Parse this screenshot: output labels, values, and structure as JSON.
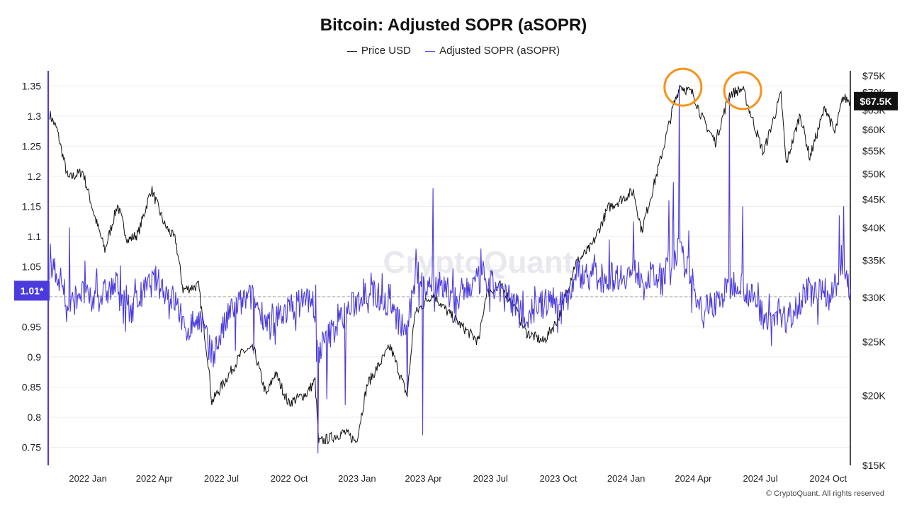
{
  "chart_data": {
    "type": "line",
    "title": "Bitcoin: Adjusted SOPR (aSOPR)",
    "watermark": "CryptoQuant",
    "footer": "© CryptoQuant. All rights reserved",
    "x_tick_labels": [
      "2022 Jan",
      "2022 Apr",
      "2022 Jul",
      "2022 Oct",
      "2023 Jan",
      "2023 Apr",
      "2023 Jul",
      "2023 Oct",
      "2024 Jan",
      "2024 Apr",
      "2024 Jul",
      "2024 Oct"
    ],
    "x_range": [
      "2021-11-10",
      "2024-10-31"
    ],
    "left_axis": {
      "ticks": [
        0.75,
        0.8,
        0.85,
        0.9,
        0.95,
        1.0,
        1.05,
        1.1,
        1.15,
        1.2,
        1.25,
        1.3,
        1.35
      ],
      "tick_labels": [
        "0.75",
        "0.8",
        "0.85",
        "0.9",
        "0.95",
        "",
        "1.05",
        "1.1",
        "1.15",
        "1.2",
        "1.25",
        "1.3",
        "1.35"
      ],
      "ylim": [
        0.72,
        1.375
      ],
      "current_value_label": "1.01*",
      "reference_line": 1.0
    },
    "right_axis": {
      "scale": "log",
      "ticks": [
        15000,
        20000,
        25000,
        30000,
        35000,
        40000,
        45000,
        50000,
        55000,
        60000,
        65000,
        70000,
        75000
      ],
      "tick_labels": [
        "$15K",
        "$20K",
        "$25K",
        "$30K",
        "$35K",
        "$40K",
        "$45K",
        "$50K",
        "$55K",
        "$60K",
        "$65K",
        "$70K",
        "$75K"
      ],
      "ylim": [
        15000,
        76500
      ],
      "current_value_label": "$67.5K"
    },
    "colors": {
      "price": "#111111",
      "asopr": "#4b3bdc",
      "annotation": "#f7931a"
    },
    "series": [
      {
        "name": "Price USD",
        "axis": "right",
        "points": [
          [
            "2021-11-10",
            64000
          ],
          [
            "2021-11-20",
            60000
          ],
          [
            "2021-12-05",
            49000
          ],
          [
            "2021-12-25",
            50500
          ],
          [
            "2022-01-10",
            42000
          ],
          [
            "2022-01-24",
            36500
          ],
          [
            "2022-02-10",
            44000
          ],
          [
            "2022-02-24",
            38000
          ],
          [
            "2022-03-10",
            39000
          ],
          [
            "2022-03-28",
            47000
          ],
          [
            "2022-04-15",
            40500
          ],
          [
            "2022-04-30",
            38000
          ],
          [
            "2022-05-10",
            31000
          ],
          [
            "2022-05-31",
            31500
          ],
          [
            "2022-06-13",
            23000
          ],
          [
            "2022-06-18",
            19500
          ],
          [
            "2022-07-08",
            21500
          ],
          [
            "2022-07-30",
            24000
          ],
          [
            "2022-08-14",
            24200
          ],
          [
            "2022-08-31",
            20000
          ],
          [
            "2022-09-12",
            22000
          ],
          [
            "2022-09-30",
            19400
          ],
          [
            "2022-10-25",
            20200
          ],
          [
            "2022-11-05",
            21300
          ],
          [
            "2022-11-10",
            16500
          ],
          [
            "2022-12-15",
            17200
          ],
          [
            "2022-12-31",
            16550
          ],
          [
            "2023-01-15",
            21000
          ],
          [
            "2023-02-15",
            24500
          ],
          [
            "2023-03-10",
            20000
          ],
          [
            "2023-03-20",
            28000
          ],
          [
            "2023-04-14",
            30500
          ],
          [
            "2023-05-01",
            28500
          ],
          [
            "2023-05-25",
            26500
          ],
          [
            "2023-06-15",
            25000
          ],
          [
            "2023-06-25",
            30500
          ],
          [
            "2023-07-14",
            31500
          ],
          [
            "2023-08-01",
            29200
          ],
          [
            "2023-08-18",
            26000
          ],
          [
            "2023-09-11",
            25000
          ],
          [
            "2023-10-01",
            27500
          ],
          [
            "2023-10-24",
            34500
          ],
          [
            "2023-11-15",
            37000
          ],
          [
            "2023-12-08",
            43500
          ],
          [
            "2024-01-11",
            46500
          ],
          [
            "2024-01-22",
            39500
          ],
          [
            "2024-02-15",
            52000
          ],
          [
            "2024-03-05",
            66000
          ],
          [
            "2024-03-14",
            72000
          ],
          [
            "2024-04-01",
            69500
          ],
          [
            "2024-04-13",
            63000
          ],
          [
            "2024-05-01",
            57000
          ],
          [
            "2024-05-20",
            69500
          ],
          [
            "2024-06-07",
            71000
          ],
          [
            "2024-06-24",
            60500
          ],
          [
            "2024-07-05",
            54500
          ],
          [
            "2024-07-29",
            69500
          ],
          [
            "2024-08-05",
            52000
          ],
          [
            "2024-08-24",
            64000
          ],
          [
            "2024-09-06",
            53500
          ],
          [
            "2024-09-27",
            66000
          ],
          [
            "2024-10-10",
            59000
          ],
          [
            "2024-10-21",
            68500
          ],
          [
            "2024-10-31",
            67500
          ]
        ]
      },
      {
        "name": "Adjusted SOPR (aSOPR)",
        "axis": "left",
        "points": [
          [
            "2021-11-10",
            1.05
          ],
          [
            "2021-11-25",
            1.03
          ],
          [
            "2021-12-04",
            0.97
          ],
          [
            "2021-12-20",
            1.01
          ],
          [
            "2022-01-05",
            0.99
          ],
          [
            "2022-02-10",
            1.02
          ],
          [
            "2022-03-01",
            0.98
          ],
          [
            "2022-04-01",
            1.03
          ],
          [
            "2022-05-01",
            0.99
          ],
          [
            "2022-05-12",
            0.94
          ],
          [
            "2022-06-01",
            0.97
          ],
          [
            "2022-06-18",
            0.9
          ],
          [
            "2022-07-15",
            0.98
          ],
          [
            "2022-08-10",
            1.0
          ],
          [
            "2022-09-01",
            0.96
          ],
          [
            "2022-10-01",
            0.98
          ],
          [
            "2022-11-01",
            1.0
          ],
          [
            "2022-11-09",
            0.91
          ],
          [
            "2022-11-20",
            0.93
          ],
          [
            "2022-12-15",
            0.97
          ],
          [
            "2023-01-14",
            1.01
          ],
          [
            "2023-02-01",
            1.0
          ],
          [
            "2023-03-10",
            0.94
          ],
          [
            "2023-03-22",
            1.04
          ],
          [
            "2023-04-15",
            1.02
          ],
          [
            "2023-05-15",
            1.0
          ],
          [
            "2023-06-20",
            1.03
          ],
          [
            "2023-07-15",
            1.01
          ],
          [
            "2023-08-18",
            0.97
          ],
          [
            "2023-09-15",
            0.99
          ],
          [
            "2023-10-15",
            1.0
          ],
          [
            "2023-10-25",
            1.04
          ],
          [
            "2023-12-01",
            1.03
          ],
          [
            "2024-01-11",
            1.04
          ],
          [
            "2024-02-15",
            1.03
          ],
          [
            "2024-03-12",
            1.08
          ],
          [
            "2024-04-01",
            1.02
          ],
          [
            "2024-04-13",
            0.98
          ],
          [
            "2024-05-01",
            0.99
          ],
          [
            "2024-06-01",
            1.03
          ],
          [
            "2024-07-05",
            0.97
          ],
          [
            "2024-08-05",
            0.96
          ],
          [
            "2024-09-01",
            1.01
          ],
          [
            "2024-10-01",
            1.0
          ],
          [
            "2024-10-21",
            1.04
          ],
          [
            "2024-10-31",
            1.01
          ]
        ],
        "spikes": [
          [
            "2021-12-07",
            1.115
          ],
          [
            "2021-12-28",
            1.06
          ],
          [
            "2022-03-30",
            1.04
          ],
          [
            "2022-06-14",
            0.895
          ],
          [
            "2022-07-20",
            0.91
          ],
          [
            "2022-08-14",
            0.905
          ],
          [
            "2022-09-10",
            0.935
          ],
          [
            "2022-11-06",
            1.02
          ],
          [
            "2022-11-09",
            0.74
          ],
          [
            "2022-11-21",
            0.83
          ],
          [
            "2022-12-16",
            0.82
          ],
          [
            "2023-01-20",
            1.04
          ],
          [
            "2023-03-10",
            0.835
          ],
          [
            "2023-03-21",
            1.045
          ],
          [
            "2023-03-31",
            0.77
          ],
          [
            "2023-04-14",
            1.18
          ],
          [
            "2023-06-21",
            1.06
          ],
          [
            "2023-08-17",
            0.95
          ],
          [
            "2023-12-09",
            1.095
          ],
          [
            "2024-01-11",
            1.125
          ],
          [
            "2024-02-28",
            1.16
          ],
          [
            "2024-03-05",
            1.19
          ],
          [
            "2024-03-13",
            1.35
          ],
          [
            "2024-03-26",
            1.11
          ],
          [
            "2024-05-20",
            1.33
          ],
          [
            "2024-06-07",
            1.15
          ],
          [
            "2024-08-05",
            0.94
          ],
          [
            "2024-10-16",
            1.135
          ],
          [
            "2024-10-22",
            1.15
          ]
        ]
      }
    ],
    "annotations": [
      {
        "type": "circle",
        "at": [
          "2024-03-18",
          71500
        ]
      },
      {
        "type": "circle",
        "at": [
          "2024-06-07",
          70500
        ]
      }
    ]
  }
}
